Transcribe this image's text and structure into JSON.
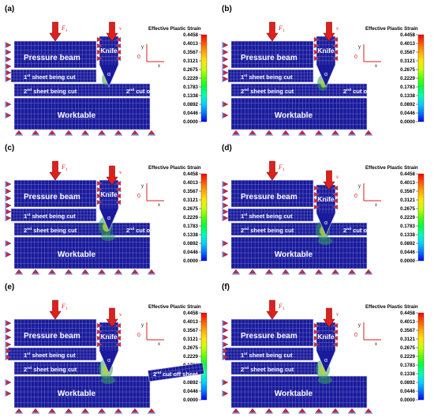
{
  "figure": {
    "legend_title": "Effective Plastic Strain",
    "legend_values": [
      "0.4458",
      "0.4013",
      "0.3567",
      "0.3121",
      "0.2675",
      "0.2229",
      "0.1783",
      "0.1338",
      "0.0892",
      "0.0446",
      "0.0000"
    ],
    "colors": {
      "mesh_blue": "#1a1a9c",
      "mesh_line": "#9aa0d8",
      "arrow_red": "#e0201b",
      "support_red": "#d8232a",
      "axis_red": "#d81e1e"
    },
    "labels": {
      "pressure_beam": "Pressure beam",
      "knife": "Knife",
      "sheet1": "1st sheet being cut",
      "sheet1_base": "1",
      "sheet1_sup": "st",
      "sheet1_rest": " sheet being cut",
      "sheet2_base": "2",
      "sheet2_sup": "nd",
      "sheet2_rest": " sheet being cut",
      "cutoff_base": "2",
      "cutoff_sup": "nd",
      "cutoff_rest": " cut off sheet",
      "worktable": "Worktable",
      "force": "F",
      "force_sub": "1",
      "axis_x": "x",
      "axis_y": "y",
      "axis_o": "0",
      "angle": "α",
      "v": "v"
    },
    "panels": [
      {
        "id": "a",
        "label": "(a)",
        "stage": 0
      },
      {
        "id": "b",
        "label": "(b)",
        "stage": 1
      },
      {
        "id": "c",
        "label": "(c)",
        "stage": 2
      },
      {
        "id": "d",
        "label": "(d)",
        "stage": 3
      },
      {
        "id": "e",
        "label": "(e)",
        "stage": 4
      },
      {
        "id": "f",
        "label": "(f)",
        "stage": 5
      }
    ]
  }
}
